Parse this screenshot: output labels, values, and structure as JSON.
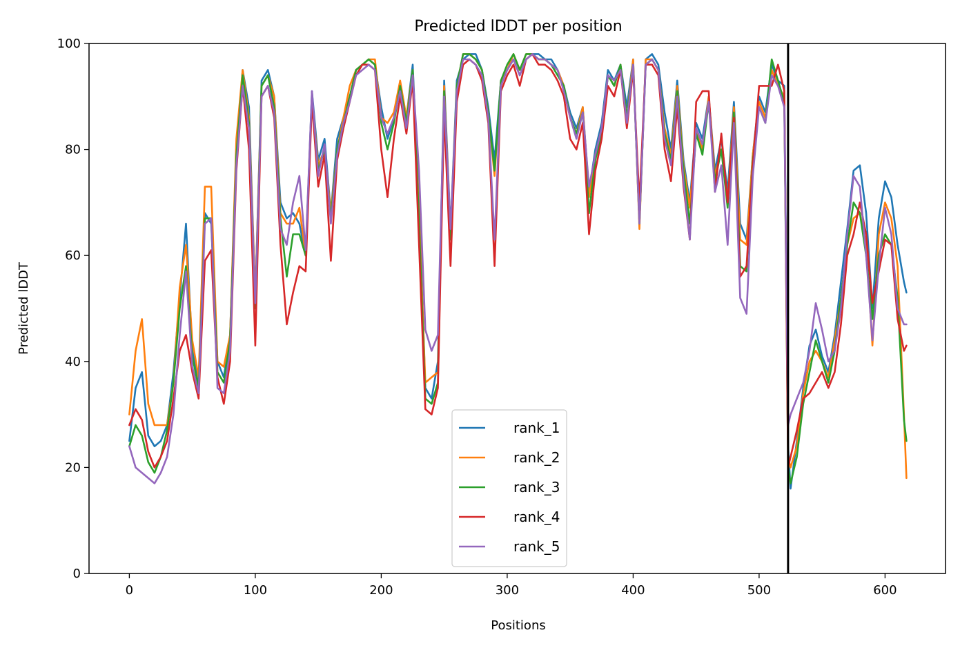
{
  "chart_data": {
    "type": "line",
    "title": "Predicted lDDT per position",
    "xlabel": "Positions",
    "ylabel": "Predicted lDDT",
    "xlim": [
      -32,
      648
    ],
    "ylim": [
      0,
      100
    ],
    "xticks": [
      "0",
      "100",
      "200",
      "300",
      "400",
      "500",
      "600"
    ],
    "yticks": [
      "0",
      "20",
      "40",
      "60",
      "80",
      "100"
    ],
    "legend_position": "lower center",
    "vline": {
      "x": 523,
      "color": "#000000"
    },
    "series": [
      {
        "name": "rank_1",
        "color": "#1f77b4",
        "x": [
          0,
          5,
          10,
          15,
          20,
          25,
          30,
          35,
          40,
          45,
          50,
          55,
          60,
          65,
          70,
          75,
          80,
          85,
          90,
          95,
          100,
          105,
          110,
          115,
          120,
          125,
          130,
          135,
          140,
          145,
          150,
          155,
          160,
          165,
          170,
          175,
          180,
          185,
          190,
          195,
          200,
          205,
          210,
          215,
          220,
          225,
          230,
          235,
          240,
          245,
          250,
          255,
          260,
          265,
          270,
          275,
          280,
          285,
          290,
          295,
          300,
          305,
          310,
          315,
          320,
          325,
          330,
          335,
          340,
          345,
          350,
          355,
          360,
          365,
          370,
          375,
          380,
          385,
          390,
          395,
          400,
          405,
          410,
          415,
          420,
          425,
          430,
          435,
          440,
          445,
          450,
          455,
          460,
          465,
          470,
          475,
          480,
          485,
          490,
          495,
          500,
          505,
          510,
          515,
          520,
          523,
          525,
          530,
          535,
          540,
          545,
          550,
          555,
          560,
          565,
          570,
          575,
          580,
          585,
          590,
          595,
          600,
          605,
          610,
          615,
          617
        ],
        "y": [
          25,
          35,
          38,
          26,
          24,
          25,
          28,
          38,
          52,
          66,
          42,
          36,
          68,
          66,
          40,
          37,
          45,
          80,
          95,
          88,
          52,
          93,
          95,
          90,
          70,
          67,
          68,
          66,
          60,
          91,
          78,
          82,
          68,
          82,
          86,
          90,
          95,
          96,
          97,
          96,
          88,
          82,
          86,
          92,
          86,
          96,
          70,
          35,
          33,
          40,
          93,
          65,
          93,
          97,
          98,
          98,
          95,
          88,
          78,
          93,
          95,
          97,
          94,
          97,
          98,
          98,
          97,
          97,
          95,
          92,
          87,
          84,
          88,
          72,
          80,
          85,
          95,
          93,
          96,
          88,
          97,
          66,
          97,
          98,
          96,
          87,
          80,
          93,
          78,
          70,
          85,
          82,
          90,
          76,
          82,
          72,
          89,
          66,
          63,
          79,
          90,
          87,
          96,
          93,
          92,
          24,
          16,
          25,
          35,
          43,
          46,
          41,
          38,
          45,
          55,
          65,
          76,
          77,
          68,
          50,
          67,
          74,
          71,
          62,
          55,
          53
        ]
      },
      {
        "name": "rank_2",
        "color": "#ff7f0e",
        "x": [
          0,
          5,
          10,
          15,
          20,
          25,
          30,
          35,
          40,
          45,
          50,
          55,
          60,
          65,
          70,
          75,
          80,
          85,
          90,
          95,
          100,
          105,
          110,
          115,
          120,
          125,
          130,
          135,
          140,
          145,
          150,
          155,
          160,
          165,
          170,
          175,
          180,
          185,
          190,
          195,
          200,
          205,
          210,
          215,
          220,
          225,
          230,
          235,
          240,
          245,
          250,
          255,
          260,
          265,
          270,
          275,
          280,
          285,
          290,
          295,
          300,
          305,
          310,
          315,
          320,
          325,
          330,
          335,
          340,
          345,
          350,
          355,
          360,
          365,
          370,
          375,
          380,
          385,
          390,
          395,
          400,
          405,
          410,
          415,
          420,
          425,
          430,
          435,
          440,
          445,
          450,
          455,
          460,
          465,
          470,
          475,
          480,
          485,
          490,
          495,
          500,
          505,
          510,
          515,
          520,
          523,
          525,
          530,
          535,
          540,
          545,
          550,
          555,
          560,
          565,
          570,
          575,
          580,
          585,
          590,
          595,
          600,
          605,
          610,
          615,
          617
        ],
        "y": [
          30,
          42,
          48,
          32,
          28,
          28,
          28,
          36,
          54,
          62,
          44,
          37,
          73,
          73,
          40,
          39,
          45,
          82,
          95,
          86,
          52,
          92,
          94,
          90,
          68,
          66,
          66,
          69,
          60,
          90,
          77,
          80,
          68,
          80,
          86,
          92,
          95,
          96,
          97,
          97,
          86,
          85,
          87,
          93,
          86,
          95,
          68,
          36,
          37,
          38,
          92,
          64,
          92,
          98,
          98,
          97,
          95,
          87,
          75,
          93,
          95,
          98,
          95,
          98,
          98,
          97,
          97,
          96,
          95,
          92,
          86,
          83,
          88,
          71,
          79,
          84,
          94,
          92,
          96,
          86,
          97,
          65,
          97,
          97,
          95,
          84,
          79,
          92,
          77,
          69,
          84,
          80,
          90,
          75,
          80,
          70,
          88,
          63,
          62,
          79,
          89,
          86,
          95,
          92,
          90,
          22,
          20,
          24,
          34,
          40,
          42,
          40,
          37,
          44,
          52,
          62,
          67,
          68,
          62,
          43,
          64,
          70,
          67,
          58,
          30,
          18
        ]
      },
      {
        "name": "rank_3",
        "color": "#2ca02c",
        "x": [
          0,
          5,
          10,
          15,
          20,
          25,
          30,
          35,
          40,
          45,
          50,
          55,
          60,
          65,
          70,
          75,
          80,
          85,
          90,
          95,
          100,
          105,
          110,
          115,
          120,
          125,
          130,
          135,
          140,
          145,
          150,
          155,
          160,
          165,
          170,
          175,
          180,
          185,
          190,
          195,
          200,
          205,
          210,
          215,
          220,
          225,
          230,
          235,
          240,
          245,
          250,
          255,
          260,
          265,
          270,
          275,
          280,
          285,
          290,
          295,
          300,
          305,
          310,
          315,
          320,
          325,
          330,
          335,
          340,
          345,
          350,
          355,
          360,
          365,
          370,
          375,
          380,
          385,
          390,
          395,
          400,
          405,
          410,
          415,
          420,
          425,
          430,
          435,
          440,
          445,
          450,
          455,
          460,
          465,
          470,
          475,
          480,
          485,
          490,
          495,
          500,
          505,
          510,
          515,
          520,
          523,
          525,
          530,
          535,
          540,
          545,
          550,
          555,
          560,
          565,
          570,
          575,
          580,
          585,
          590,
          595,
          600,
          605,
          610,
          615,
          617
        ],
        "y": [
          24,
          28,
          26,
          21,
          19,
          22,
          27,
          36,
          50,
          58,
          41,
          35,
          67,
          67,
          38,
          36,
          44,
          79,
          94,
          85,
          50,
          92,
          94,
          88,
          67,
          56,
          64,
          64,
          60,
          90,
          76,
          80,
          67,
          80,
          85,
          90,
          95,
          96,
          97,
          96,
          85,
          80,
          85,
          92,
          85,
          95,
          66,
          33,
          32,
          36,
          91,
          63,
          92,
          98,
          98,
          97,
          95,
          87,
          76,
          93,
          96,
          98,
          95,
          98,
          98,
          97,
          97,
          96,
          94,
          92,
          86,
          83,
          87,
          68,
          78,
          83,
          94,
          92,
          96,
          86,
          96,
          66,
          96,
          97,
          95,
          83,
          78,
          91,
          76,
          66,
          83,
          79,
          89,
          74,
          80,
          69,
          87,
          58,
          57,
          78,
          88,
          85,
          97,
          93,
          89,
          20,
          17,
          22,
          32,
          38,
          44,
          40,
          36,
          42,
          52,
          62,
          70,
          68,
          60,
          48,
          60,
          64,
          62,
          52,
          29,
          25
        ]
      },
      {
        "name": "rank_4",
        "color": "#d62728",
        "x": [
          0,
          5,
          10,
          15,
          20,
          25,
          30,
          35,
          40,
          45,
          50,
          55,
          60,
          65,
          70,
          75,
          80,
          85,
          90,
          95,
          100,
          105,
          110,
          115,
          120,
          125,
          130,
          135,
          140,
          145,
          150,
          155,
          160,
          165,
          170,
          175,
          180,
          185,
          190,
          195,
          200,
          205,
          210,
          215,
          220,
          225,
          230,
          235,
          240,
          245,
          250,
          255,
          260,
          265,
          270,
          275,
          280,
          285,
          290,
          295,
          300,
          305,
          310,
          315,
          320,
          325,
          330,
          335,
          340,
          345,
          350,
          355,
          360,
          365,
          370,
          375,
          380,
          385,
          390,
          395,
          400,
          405,
          410,
          415,
          420,
          425,
          430,
          435,
          440,
          445,
          450,
          455,
          460,
          465,
          470,
          475,
          480,
          485,
          490,
          495,
          500,
          505,
          510,
          515,
          520,
          523,
          525,
          530,
          535,
          540,
          545,
          550,
          555,
          560,
          565,
          570,
          575,
          580,
          585,
          590,
          595,
          600,
          605,
          610,
          615,
          617
        ],
        "y": [
          28,
          31,
          29,
          23,
          20,
          22,
          25,
          33,
          42,
          45,
          38,
          33,
          59,
          61,
          37,
          32,
          40,
          76,
          92,
          80,
          43,
          90,
          92,
          86,
          62,
          47,
          53,
          58,
          57,
          89,
          73,
          79,
          59,
          78,
          84,
          89,
          94,
          96,
          96,
          95,
          80,
          71,
          82,
          90,
          83,
          93,
          62,
          31,
          30,
          35,
          87,
          58,
          89,
          96,
          97,
          96,
          93,
          85,
          58,
          91,
          94,
          96,
          92,
          97,
          98,
          96,
          96,
          95,
          93,
          90,
          82,
          80,
          85,
          64,
          76,
          82,
          92,
          90,
          95,
          84,
          95,
          70,
          96,
          96,
          94,
          80,
          74,
          88,
          73,
          63,
          89,
          91,
          91,
          72,
          83,
          70,
          86,
          56,
          58,
          77,
          92,
          92,
          92,
          96,
          91,
          20,
          22,
          27,
          33,
          34,
          36,
          38,
          35,
          38,
          47,
          60,
          64,
          70,
          64,
          51,
          57,
          63,
          62,
          48,
          42,
          43
        ]
      },
      {
        "name": "rank_5",
        "color": "#9467bd",
        "x": [
          0,
          5,
          10,
          15,
          20,
          25,
          30,
          35,
          40,
          45,
          50,
          55,
          60,
          65,
          70,
          75,
          80,
          85,
          90,
          95,
          100,
          105,
          110,
          115,
          120,
          125,
          130,
          135,
          140,
          145,
          150,
          155,
          160,
          165,
          170,
          175,
          180,
          185,
          190,
          195,
          200,
          205,
          210,
          215,
          220,
          225,
          230,
          235,
          240,
          245,
          250,
          255,
          260,
          265,
          270,
          275,
          280,
          285,
          290,
          295,
          300,
          305,
          310,
          315,
          320,
          325,
          330,
          335,
          340,
          345,
          350,
          355,
          360,
          365,
          370,
          375,
          380,
          385,
          390,
          395,
          400,
          405,
          410,
          415,
          420,
          425,
          430,
          435,
          440,
          445,
          450,
          455,
          460,
          465,
          470,
          475,
          480,
          485,
          490,
          495,
          500,
          505,
          510,
          515,
          520,
          523,
          525,
          530,
          535,
          540,
          545,
          550,
          555,
          560,
          565,
          570,
          575,
          580,
          585,
          590,
          595,
          600,
          605,
          610,
          615,
          617
        ],
        "y": [
          24,
          20,
          19,
          18,
          17,
          19,
          22,
          30,
          45,
          57,
          39,
          34,
          66,
          67,
          35,
          34,
          42,
          77,
          92,
          84,
          51,
          90,
          92,
          87,
          65,
          62,
          70,
          75,
          61,
          91,
          75,
          81,
          66,
          79,
          85,
          89,
          94,
          95,
          96,
          95,
          86,
          83,
          86,
          91,
          84,
          94,
          76,
          46,
          42,
          45,
          90,
          65,
          91,
          97,
          97,
          96,
          94,
          86,
          63,
          92,
          95,
          97,
          94,
          97,
          98,
          97,
          97,
          96,
          95,
          91,
          86,
          82,
          87,
          73,
          79,
          84,
          94,
          93,
          95,
          85,
          96,
          66,
          96,
          97,
          95,
          82,
          77,
          90,
          74,
          63,
          84,
          81,
          89,
          72,
          77,
          62,
          85,
          52,
          49,
          75,
          88,
          85,
          94,
          92,
          88,
          28,
          30,
          33,
          36,
          42,
          51,
          46,
          40,
          42,
          50,
          64,
          75,
          73,
          60,
          44,
          58,
          69,
          64,
          50,
          47,
          47
        ]
      }
    ]
  }
}
